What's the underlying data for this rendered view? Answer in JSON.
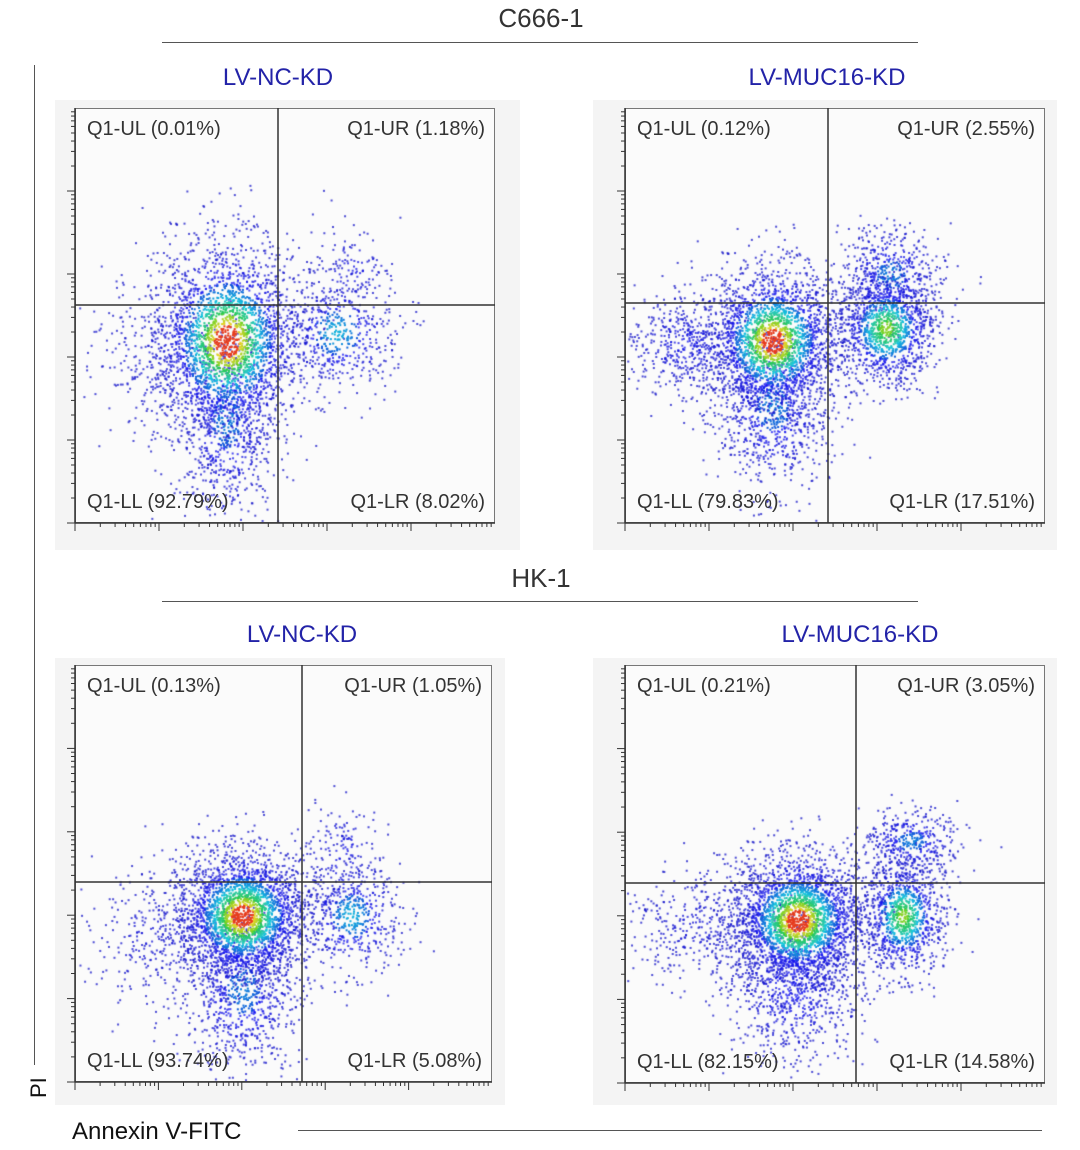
{
  "figure": {
    "y_axis_label": "PI",
    "x_axis_label": "Annexin V-FITC"
  },
  "groups": [
    {
      "title": "C666-1"
    },
    {
      "title": "HK-1"
    }
  ],
  "chart_data": [
    {
      "type": "scatter",
      "subtype": "flow-cytometry-density",
      "group": "C666-1",
      "title": "LV-NC-KD",
      "xlabel": "Annexin V-FITC",
      "ylabel": "PI",
      "scale": "log",
      "quadrants": {
        "UL": "Q1-UL (0.01%)",
        "UR": "Q1-UR (1.18%)",
        "LL": "Q1-LL (92.79%)",
        "LR": "Q1-LR (8.02%)"
      },
      "values": {
        "UL": 0.01,
        "UR": 1.18,
        "LL": 92.79,
        "LR": 8.02
      }
    },
    {
      "type": "scatter",
      "subtype": "flow-cytometry-density",
      "group": "C666-1",
      "title": "LV-MUC16-KD",
      "xlabel": "Annexin V-FITC",
      "ylabel": "PI",
      "scale": "log",
      "quadrants": {
        "UL": "Q1-UL (0.12%)",
        "UR": "Q1-UR (2.55%)",
        "LL": "Q1-LL (79.83%)",
        "LR": "Q1-LR (17.51%)"
      },
      "values": {
        "UL": 0.12,
        "UR": 2.55,
        "LL": 79.83,
        "LR": 17.51
      }
    },
    {
      "type": "scatter",
      "subtype": "flow-cytometry-density",
      "group": "HK-1",
      "title": "LV-NC-KD",
      "xlabel": "Annexin V-FITC",
      "ylabel": "PI",
      "scale": "log",
      "quadrants": {
        "UL": "Q1-UL (0.13%)",
        "UR": "Q1-UR (1.05%)",
        "LL": "Q1-LL (93.74%)",
        "LR": "Q1-LR (5.08%)"
      },
      "values": {
        "UL": 0.13,
        "UR": 1.05,
        "LL": 93.74,
        "LR": 5.08
      }
    },
    {
      "type": "scatter",
      "subtype": "flow-cytometry-density",
      "group": "HK-1",
      "title": "LV-MUC16-KD",
      "xlabel": "Annexin V-FITC",
      "ylabel": "PI",
      "scale": "log",
      "quadrants": {
        "UL": "Q1-UL (0.21%)",
        "UR": "Q1-UR (3.05%)",
        "LL": "Q1-LL (82.15%)",
        "LR": "Q1-LR (14.58%)"
      },
      "values": {
        "UL": 0.21,
        "UR": 3.05,
        "LL": 82.15,
        "LR": 14.58
      }
    }
  ],
  "colors": {
    "sample_title": "#2323a8",
    "density_low": "#1010e0",
    "density_mid": "#20c0c0",
    "density_high": "#e02020"
  }
}
